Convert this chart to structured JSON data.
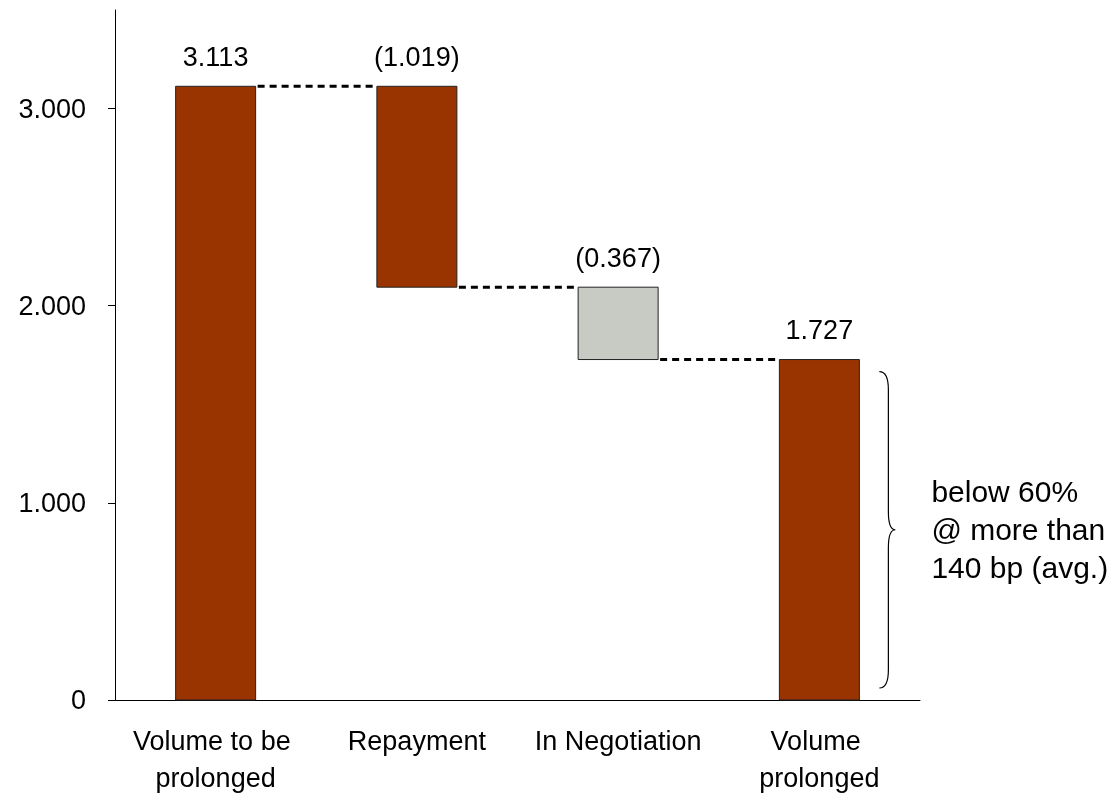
{
  "chart_data": {
    "type": "bar",
    "categories": [
      "Volume to be prolonged",
      "Repayment",
      "In Negotiation",
      "Volume prolonged"
    ],
    "values": [
      3.113,
      -1.019,
      -0.367,
      1.727
    ],
    "base": [
      0,
      3.113,
      2.094,
      0
    ],
    "colors": [
      "#993300",
      "#993300",
      "#c8cbc3",
      "#993300"
    ],
    "value_labels": [
      "3.113",
      "(1.019)",
      "(0.367)",
      "1.727"
    ],
    "ylim": [
      0,
      3.5
    ],
    "yticks": [
      0,
      {
        "value": 1,
        "label": "1.000"
      },
      {
        "value": 2,
        "label": "2.000"
      },
      {
        "value": 3,
        "label": "3.000"
      }
    ],
    "annotations": [
      "below 60%\n@ more than\n140 bp (avg.)"
    ]
  }
}
